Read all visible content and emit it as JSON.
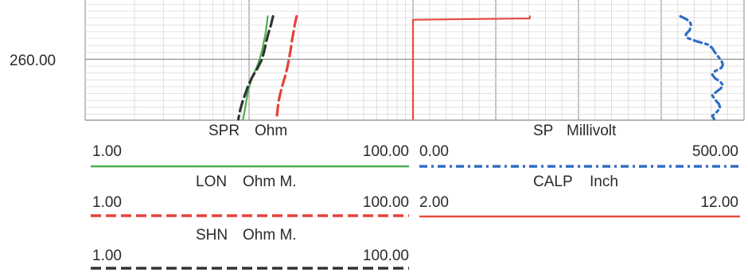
{
  "depth_axis": {
    "tick_label": "260.00",
    "tick_value": 260.0
  },
  "chart_data": {
    "type": "line",
    "y_axis": {
      "label": "",
      "ticks": [
        260.0
      ]
    },
    "tracks": [
      {
        "track": "resistivity",
        "scale": "log",
        "series": [
          {
            "name": "SPR",
            "unit": "Ohm",
            "min_label": "1.00",
            "max_label": "100.00",
            "min": 1.0,
            "max": 100.0,
            "color": "#4caf50",
            "style": "solid",
            "points": [
              [
                257.5,
                13.0
              ],
              [
                258.0,
                12.8
              ],
              [
                258.5,
                12.6
              ],
              [
                259.0,
                12.3
              ],
              [
                259.5,
                12.0
              ],
              [
                260.0,
                11.6
              ],
              [
                260.5,
                11.1
              ],
              [
                261.0,
                10.5
              ],
              [
                261.5,
                10.1
              ],
              [
                262.0,
                9.8
              ],
              [
                262.5,
                9.6
              ],
              [
                263.0,
                9.4
              ],
              [
                263.5,
                9.2
              ]
            ]
          },
          {
            "name": "LON",
            "unit": "Ohm M.",
            "min_label": "1.00",
            "max_label": "100.00",
            "min": 1.0,
            "max": 100.0,
            "color": "#e8413a",
            "style": "dashed",
            "points": [
              [
                257.5,
                19.5
              ],
              [
                258.0,
                19.0
              ],
              [
                258.5,
                18.6
              ],
              [
                259.0,
                18.2
              ],
              [
                259.5,
                17.9
              ],
              [
                260.0,
                17.5
              ],
              [
                260.5,
                17.1
              ],
              [
                261.0,
                16.6
              ],
              [
                261.5,
                16.0
              ],
              [
                262.0,
                15.5
              ],
              [
                262.5,
                15.1
              ],
              [
                263.0,
                14.9
              ],
              [
                263.5,
                14.7
              ]
            ]
          },
          {
            "name": "SHN",
            "unit": "Ohm M.",
            "min_label": "1.00",
            "max_label": "100.00",
            "min": 1.0,
            "max": 100.0,
            "color": "#333333",
            "style": "dashed",
            "points": [
              [
                257.5,
                14.0
              ],
              [
                258.0,
                13.6
              ],
              [
                258.5,
                13.1
              ],
              [
                259.0,
                12.7
              ],
              [
                259.5,
                12.4
              ],
              [
                260.0,
                12.0
              ],
              [
                260.5,
                11.3
              ],
              [
                261.0,
                10.5
              ],
              [
                261.5,
                9.9
              ],
              [
                262.0,
                9.5
              ],
              [
                262.5,
                9.1
              ],
              [
                263.0,
                8.8
              ],
              [
                263.5,
                8.6
              ]
            ]
          }
        ]
      },
      {
        "track": "sp_calp",
        "scale": "linear",
        "series": [
          {
            "name": "SP",
            "unit": "Millivolt",
            "min_label": "0.00",
            "max_label": "500.00",
            "min": 0.0,
            "max": 500.0,
            "color": "#2f6fc4",
            "style": "dashdot",
            "points": [
              [
                257.5,
                404
              ],
              [
                257.65,
                412
              ],
              [
                257.8,
                418
              ],
              [
                258.0,
                420
              ],
              [
                258.3,
                418
              ],
              [
                258.55,
                412
              ],
              [
                258.75,
                414
              ],
              [
                258.95,
                428
              ],
              [
                259.15,
                446
              ],
              [
                259.35,
                452
              ],
              [
                259.6,
                456
              ],
              [
                259.85,
                461
              ],
              [
                260.1,
                466
              ],
              [
                260.3,
                468
              ],
              [
                260.5,
                466
              ],
              [
                260.7,
                456
              ],
              [
                260.9,
                452
              ],
              [
                261.1,
                456
              ],
              [
                261.3,
                464
              ],
              [
                261.5,
                468
              ],
              [
                261.7,
                465
              ],
              [
                261.9,
                458
              ],
              [
                262.1,
                452
              ],
              [
                262.35,
                456
              ],
              [
                262.6,
                462
              ],
              [
                262.85,
                464
              ],
              [
                263.1,
                458
              ],
              [
                263.3,
                452
              ],
              [
                263.5,
                455
              ]
            ]
          },
          {
            "name": "CALP",
            "unit": "Inch",
            "min_label": "2.00",
            "max_label": "12.00",
            "min": 2.0,
            "max": 12.0,
            "color": "#e84a40",
            "style": "solid",
            "points": [
              [
                257.5,
                5.53
              ],
              [
                257.62,
                5.53
              ],
              [
                257.7,
                2.0
              ],
              [
                263.5,
                2.0
              ]
            ]
          }
        ]
      }
    ]
  }
}
